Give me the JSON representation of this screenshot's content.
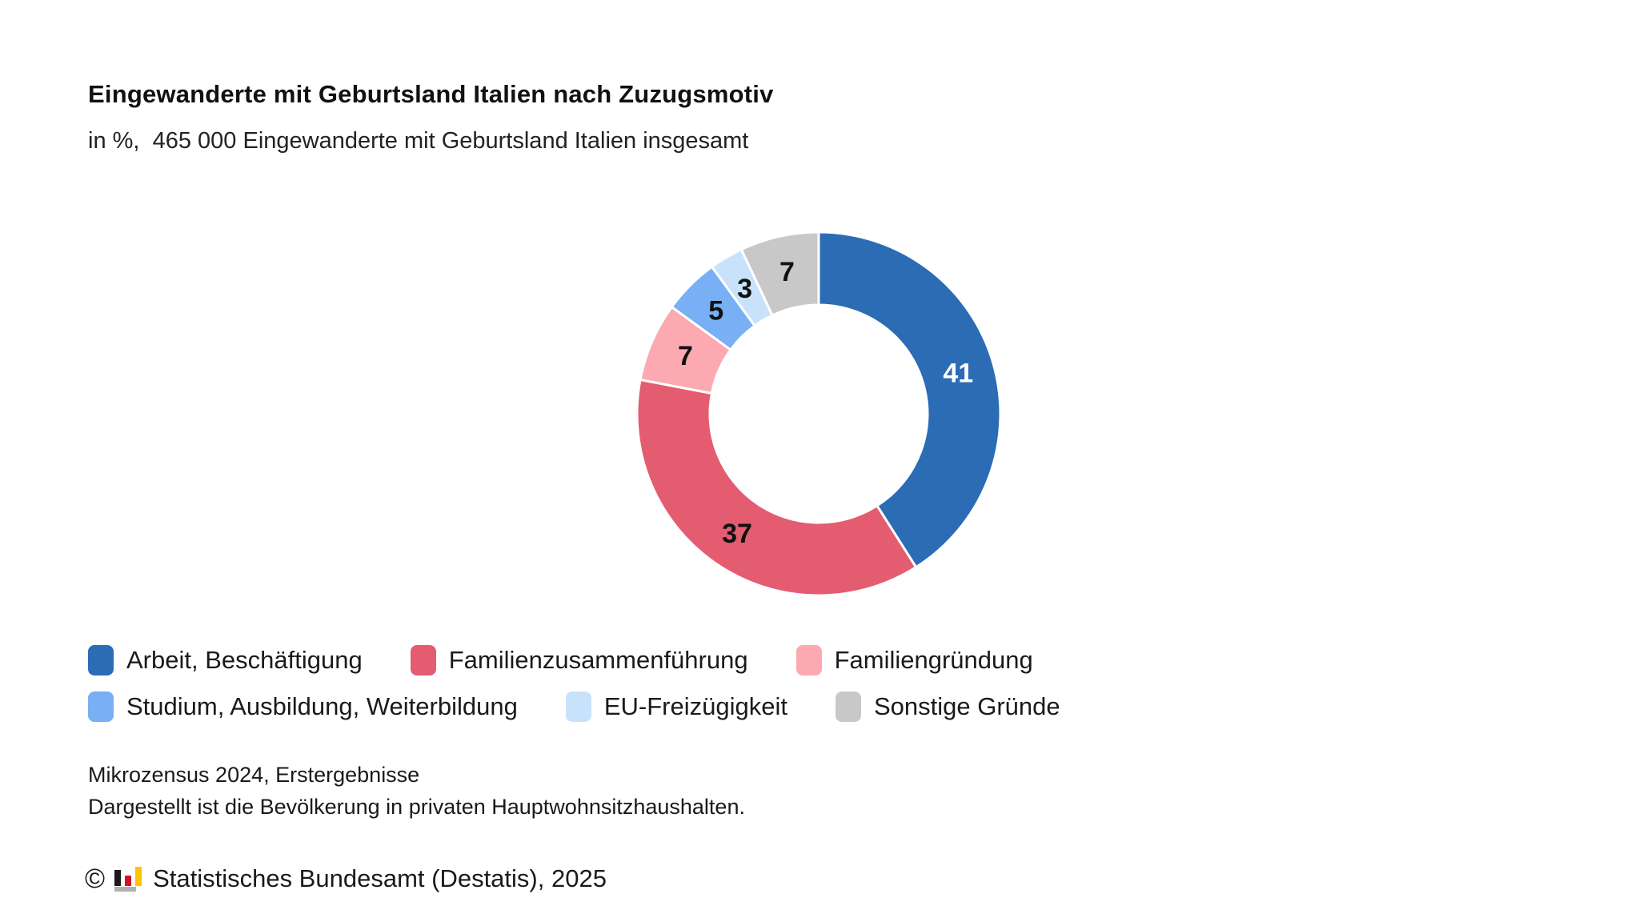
{
  "header": {
    "title": "Eingewanderte mit Geburtsland Italien nach Zuzugsmotiv",
    "subtitle": "in %,  465 000 Eingewanderte mit Geburtsland Italien insgesamt"
  },
  "chart_data": {
    "type": "pie",
    "donut": true,
    "title": "Eingewanderte mit Geburtsland Italien nach Zuzugsmotiv",
    "unit": "%",
    "total": "465 000 Eingewanderte mit Geburtsland Italien insgesamt",
    "start_angle_deg": 0,
    "direction": "clockwise",
    "inner_radius_ratio": 0.6,
    "separator_color": "#ffffff",
    "segments": [
      {
        "label": "Arbeit, Beschäftigung",
        "value": 41,
        "color": "#2B6CB5",
        "value_label_color": "#ffffff"
      },
      {
        "label": "Familienzusammenführung",
        "value": 37,
        "color": "#E45C70",
        "value_label_color": "#111111"
      },
      {
        "label": "Familiengründung",
        "value": 7,
        "color": "#FCA9B2",
        "value_label_color": "#111111"
      },
      {
        "label": "Studium, Ausbildung, Weiterbildung",
        "value": 5,
        "color": "#78AFF5",
        "value_label_color": "#111111"
      },
      {
        "label": "EU-Freizügigkeit",
        "value": 3,
        "color": "#C9E2FB",
        "value_label_color": "#111111"
      },
      {
        "label": "Sonstige Gründe",
        "value": 7,
        "color": "#C8C8C8",
        "value_label_color": "#111111"
      }
    ],
    "legend_rows": [
      [
        0,
        1,
        2
      ],
      [
        3,
        4,
        5
      ]
    ],
    "legend_position": "bottom-left"
  },
  "footnotes": [
    "Mikrozensus 2024, Erstergebnisse",
    "Dargestellt ist die Bevölkerung in privaten Hauptwohnsitzhaushalten."
  ],
  "source": {
    "copyright_symbol": "©",
    "logo_name": "destatis-bar-chart-logo",
    "logo_colors": {
      "black": "#1a1a1a",
      "red": "#D0112B",
      "yellow": "#FDC300",
      "base_gray": "#B1B1B1"
    },
    "text": "Statistisches Bundesamt (Destatis), 2025"
  }
}
